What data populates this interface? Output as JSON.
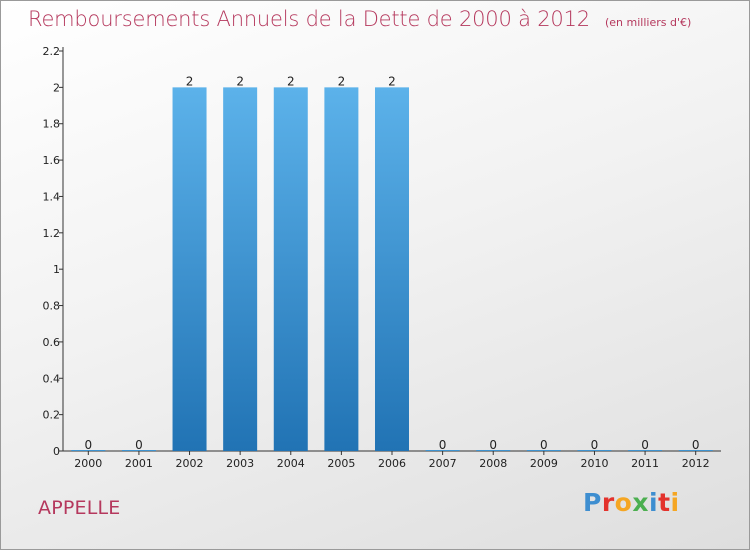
{
  "title": "Remboursements Annuels de la Dette de 2000 à 2012",
  "subtitle": "(en milliers d'€)",
  "commune": "APPELLE",
  "logo": {
    "text": "Proxiti",
    "colors": [
      "#3e8ed0",
      "#e3322c",
      "#f5a623",
      "#4caf50",
      "#3e8ed0",
      "#e3322c",
      "#f5a623"
    ]
  },
  "colors": {
    "title": "#b5385d",
    "bar_top": "#5cb2ea",
    "bar_bottom": "#2173b4"
  },
  "chart_data": {
    "type": "bar",
    "categories": [
      "2000",
      "2001",
      "2002",
      "2003",
      "2004",
      "2005",
      "2006",
      "2007",
      "2008",
      "2009",
      "2010",
      "2011",
      "2012"
    ],
    "values": [
      0,
      0,
      2,
      2,
      2,
      2,
      2,
      0,
      0,
      0,
      0,
      0,
      0
    ],
    "value_labels": [
      "0",
      "0",
      "2",
      "2",
      "2",
      "2",
      "2",
      "0",
      "0",
      "0",
      "0",
      "0",
      "0"
    ],
    "yticks": [
      "0",
      "0.2",
      "0.4",
      "0.6",
      "0.8",
      "1",
      "1.2",
      "1.4",
      "1.6",
      "1.8",
      "2",
      "2.2"
    ],
    "ylim": [
      0,
      2.2
    ],
    "grid": false,
    "legend": "none"
  }
}
